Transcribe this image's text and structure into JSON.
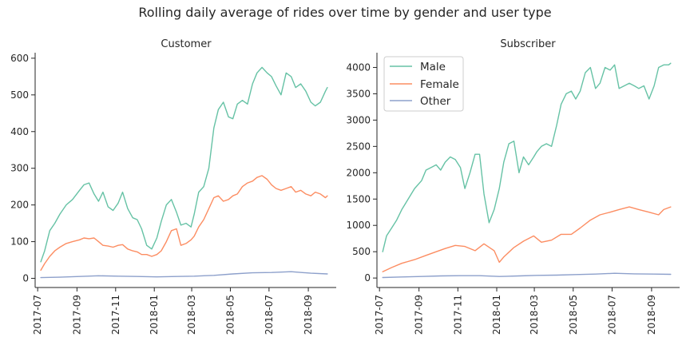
{
  "figure": {
    "suptitle": "Rolling daily average of rides over time by gender and user type",
    "colors": {
      "Male": "#66c2a5",
      "Female": "#fc8d62",
      "Other": "#8da0cb"
    },
    "legend": {
      "panel": "Subscriber",
      "placement": "top-left"
    }
  },
  "chart_data": [
    {
      "type": "line",
      "title": "Customer",
      "xlabel": "",
      "ylabel": "",
      "x_is_date": true,
      "xlim": [
        "2017-06-27",
        "2018-10-15"
      ],
      "ylim": [
        -25,
        615
      ],
      "xticks": [
        "2017-07",
        "2017-09",
        "2017-11",
        "2018-01",
        "2018-03",
        "2018-05",
        "2018-07",
        "2018-09"
      ],
      "yticks": [
        0,
        100,
        200,
        300,
        400,
        500,
        600
      ],
      "grid": false,
      "series": [
        {
          "name": "Male",
          "color": "#66c2a5",
          "x": [
            "2017-07-06",
            "2017-07-12",
            "2017-07-20",
            "2017-07-28",
            "2017-08-05",
            "2017-08-15",
            "2017-08-25",
            "2017-09-05",
            "2017-09-12",
            "2017-09-20",
            "2017-09-28",
            "2017-10-05",
            "2017-10-12",
            "2017-10-20",
            "2017-10-28",
            "2017-11-05",
            "2017-11-12",
            "2017-11-20",
            "2017-11-28",
            "2017-12-05",
            "2017-12-12",
            "2017-12-20",
            "2017-12-28",
            "2018-01-05",
            "2018-01-12",
            "2018-01-20",
            "2018-01-28",
            "2018-02-05",
            "2018-02-12",
            "2018-02-20",
            "2018-02-28",
            "2018-03-05",
            "2018-03-12",
            "2018-03-20",
            "2018-03-28",
            "2018-04-05",
            "2018-04-12",
            "2018-04-20",
            "2018-04-28",
            "2018-05-05",
            "2018-05-12",
            "2018-05-20",
            "2018-05-28",
            "2018-06-05",
            "2018-06-12",
            "2018-06-20",
            "2018-06-28",
            "2018-07-05",
            "2018-07-12",
            "2018-07-20",
            "2018-07-28",
            "2018-08-05",
            "2018-08-12",
            "2018-08-20",
            "2018-08-28",
            "2018-09-05",
            "2018-09-12",
            "2018-09-20",
            "2018-09-28",
            "2018-10-01"
          ],
          "y": [
            45,
            75,
            130,
            150,
            175,
            200,
            215,
            240,
            255,
            260,
            230,
            210,
            235,
            195,
            185,
            205,
            235,
            190,
            165,
            160,
            135,
            90,
            80,
            110,
            155,
            200,
            215,
            180,
            145,
            150,
            140,
            175,
            235,
            250,
            300,
            410,
            460,
            480,
            440,
            435,
            475,
            485,
            475,
            530,
            560,
            575,
            560,
            550,
            525,
            500,
            560,
            550,
            520,
            530,
            510,
            480,
            470,
            480,
            510,
            520
          ]
        },
        {
          "name": "Female",
          "color": "#fc8d62",
          "x": [
            "2017-07-06",
            "2017-07-12",
            "2017-07-20",
            "2017-07-28",
            "2017-08-05",
            "2017-08-15",
            "2017-08-25",
            "2017-09-05",
            "2017-09-12",
            "2017-09-20",
            "2017-09-28",
            "2017-10-05",
            "2017-10-12",
            "2017-10-20",
            "2017-10-28",
            "2017-11-05",
            "2017-11-12",
            "2017-11-20",
            "2017-11-28",
            "2017-12-05",
            "2017-12-12",
            "2017-12-20",
            "2017-12-28",
            "2018-01-05",
            "2018-01-12",
            "2018-01-20",
            "2018-01-28",
            "2018-02-05",
            "2018-02-12",
            "2018-02-20",
            "2018-02-28",
            "2018-03-05",
            "2018-03-12",
            "2018-03-20",
            "2018-03-28",
            "2018-04-05",
            "2018-04-12",
            "2018-04-20",
            "2018-04-28",
            "2018-05-05",
            "2018-05-12",
            "2018-05-20",
            "2018-05-28",
            "2018-06-05",
            "2018-06-12",
            "2018-06-20",
            "2018-06-28",
            "2018-07-05",
            "2018-07-12",
            "2018-07-20",
            "2018-07-28",
            "2018-08-05",
            "2018-08-12",
            "2018-08-20",
            "2018-08-28",
            "2018-09-05",
            "2018-09-12",
            "2018-09-20",
            "2018-09-28",
            "2018-10-01"
          ],
          "y": [
            22,
            40,
            60,
            75,
            85,
            95,
            100,
            105,
            110,
            108,
            110,
            100,
            90,
            88,
            85,
            90,
            92,
            80,
            75,
            72,
            65,
            65,
            60,
            65,
            75,
            100,
            130,
            135,
            90,
            95,
            105,
            115,
            140,
            160,
            190,
            220,
            225,
            210,
            215,
            225,
            230,
            250,
            260,
            265,
            275,
            280,
            270,
            255,
            245,
            240,
            245,
            250,
            235,
            240,
            230,
            225,
            235,
            230,
            220,
            225
          ]
        },
        {
          "name": "Other",
          "color": "#8da0cb",
          "x": [
            "2017-07-06",
            "2017-08-05",
            "2017-09-05",
            "2017-10-05",
            "2017-11-05",
            "2017-12-05",
            "2018-01-05",
            "2018-02-05",
            "2018-03-05",
            "2018-04-05",
            "2018-05-05",
            "2018-06-05",
            "2018-07-05",
            "2018-08-05",
            "2018-09-05",
            "2018-10-01"
          ],
          "y": [
            2,
            3,
            5,
            7,
            6,
            5,
            4,
            5,
            6,
            8,
            12,
            15,
            16,
            18,
            14,
            12
          ]
        }
      ]
    },
    {
      "type": "line",
      "title": "Subscriber",
      "xlabel": "",
      "ylabel": "",
      "x_is_date": true,
      "xlim": [
        "2017-06-27",
        "2018-10-15"
      ],
      "ylim": [
        -180,
        4280
      ],
      "xticks": [
        "2017-07",
        "2017-09",
        "2017-11",
        "2018-01",
        "2018-03",
        "2018-05",
        "2018-07",
        "2018-09"
      ],
      "yticks": [
        0,
        500,
        1000,
        1500,
        2000,
        2500,
        3000,
        3500,
        4000
      ],
      "grid": false,
      "legend": [
        "Male",
        "Female",
        "Other"
      ],
      "series": [
        {
          "name": "Male",
          "color": "#66c2a5",
          "x": [
            "2017-07-06",
            "2017-07-12",
            "2017-07-20",
            "2017-07-28",
            "2017-08-05",
            "2017-08-15",
            "2017-08-25",
            "2017-09-05",
            "2017-09-12",
            "2017-09-20",
            "2017-09-28",
            "2017-10-05",
            "2017-10-12",
            "2017-10-20",
            "2017-10-28",
            "2017-11-05",
            "2017-11-12",
            "2017-11-20",
            "2017-11-28",
            "2017-12-05",
            "2017-12-12",
            "2017-12-20",
            "2017-12-28",
            "2018-01-05",
            "2018-01-12",
            "2018-01-20",
            "2018-01-28",
            "2018-02-05",
            "2018-02-12",
            "2018-02-20",
            "2018-02-28",
            "2018-03-05",
            "2018-03-12",
            "2018-03-20",
            "2018-03-28",
            "2018-04-05",
            "2018-04-12",
            "2018-04-20",
            "2018-04-28",
            "2018-05-05",
            "2018-05-12",
            "2018-05-20",
            "2018-05-28",
            "2018-06-05",
            "2018-06-12",
            "2018-06-20",
            "2018-06-28",
            "2018-07-05",
            "2018-07-12",
            "2018-07-20",
            "2018-07-28",
            "2018-08-05",
            "2018-08-12",
            "2018-08-20",
            "2018-08-28",
            "2018-09-05",
            "2018-09-12",
            "2018-09-20",
            "2018-09-28",
            "2018-10-01"
          ],
          "y": [
            500,
            800,
            950,
            1100,
            1300,
            1500,
            1700,
            1850,
            2050,
            2100,
            2150,
            2050,
            2200,
            2300,
            2250,
            2100,
            1700,
            2000,
            2350,
            2350,
            1600,
            1050,
            1300,
            1700,
            2200,
            2550,
            2600,
            2000,
            2300,
            2150,
            2300,
            2400,
            2500,
            2550,
            2500,
            2900,
            3300,
            3500,
            3550,
            3400,
            3550,
            3900,
            4000,
            3600,
            3700,
            4000,
            3950,
            4050,
            3600,
            3650,
            3700,
            3650,
            3600,
            3650,
            3400,
            3650,
            4000,
            4050,
            4050,
            4080
          ]
        },
        {
          "name": "Female",
          "color": "#fc8d62",
          "x": [
            "2017-07-06",
            "2017-07-20",
            "2017-08-05",
            "2017-08-25",
            "2017-09-12",
            "2017-09-28",
            "2017-10-12",
            "2017-10-28",
            "2017-11-12",
            "2017-11-28",
            "2017-12-12",
            "2017-12-28",
            "2018-01-05",
            "2018-01-12",
            "2018-01-28",
            "2018-02-12",
            "2018-02-28",
            "2018-03-12",
            "2018-03-28",
            "2018-04-12",
            "2018-04-28",
            "2018-05-12",
            "2018-05-28",
            "2018-06-12",
            "2018-06-28",
            "2018-07-12",
            "2018-07-28",
            "2018-08-12",
            "2018-08-28",
            "2018-09-12",
            "2018-09-20",
            "2018-10-01"
          ],
          "y": [
            120,
            200,
            280,
            350,
            430,
            500,
            560,
            620,
            600,
            520,
            650,
            520,
            300,
            400,
            580,
            700,
            800,
            680,
            720,
            830,
            830,
            950,
            1100,
            1200,
            1250,
            1300,
            1350,
            1300,
            1250,
            1200,
            1300,
            1350
          ]
        },
        {
          "name": "Other",
          "color": "#8da0cb",
          "x": [
            "2017-07-06",
            "2017-08-05",
            "2017-09-05",
            "2017-10-05",
            "2017-11-05",
            "2017-12-05",
            "2018-01-05",
            "2018-02-05",
            "2018-03-05",
            "2018-04-05",
            "2018-05-05",
            "2018-06-05",
            "2018-07-05",
            "2018-08-05",
            "2018-09-05",
            "2018-10-01"
          ],
          "y": [
            10,
            20,
            30,
            40,
            45,
            45,
            30,
            40,
            50,
            55,
            65,
            75,
            90,
            80,
            75,
            70
          ]
        }
      ]
    }
  ]
}
